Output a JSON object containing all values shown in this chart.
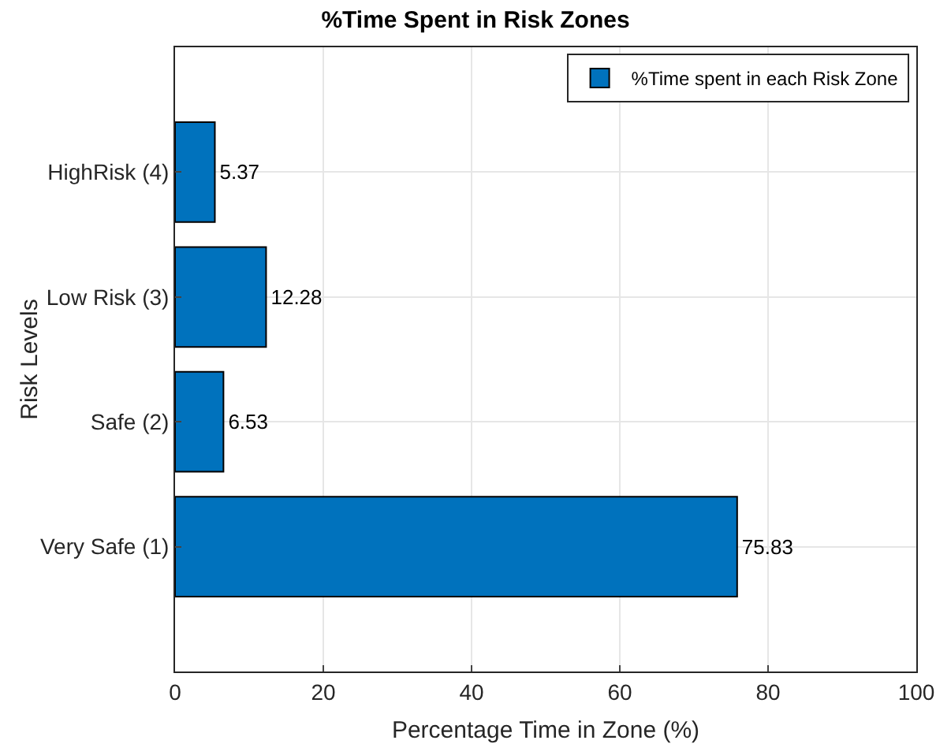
{
  "chart_data": {
    "type": "bar",
    "orientation": "horizontal",
    "title": "%Time Spent in Risk Zones",
    "xlabel": "Percentage Time in Zone (%)",
    "ylabel": "Risk Levels",
    "categories": [
      "HighRisk (4)",
      "Low Risk (3)",
      "Safe (2)",
      "Very Safe (1)"
    ],
    "series": [
      {
        "name": "%Time spent in each Risk Zone",
        "color": "#0072bd",
        "values": [
          5.37,
          12.28,
          6.53,
          75.83
        ]
      }
    ],
    "xlim": [
      0,
      100
    ],
    "xticks": [
      0,
      20,
      40,
      60,
      80,
      100
    ],
    "grid": true,
    "legend": "top right",
    "data_labels": true
  }
}
